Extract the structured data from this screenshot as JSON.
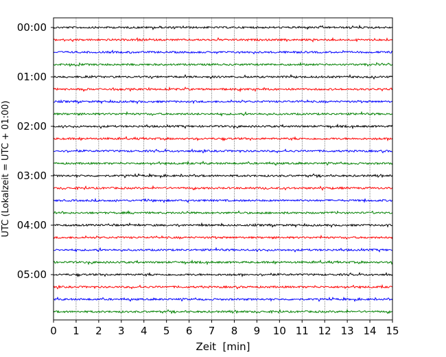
{
  "chart_data": {
    "type": "line",
    "title": "",
    "xlabel": "Zeit  [min]",
    "ylabel": "UTC (Lokalzeit = UTC + 01:00)",
    "xlim": [
      0,
      15
    ],
    "x_ticks": [
      "0",
      "1",
      "2",
      "3",
      "4",
      "5",
      "6",
      "7",
      "8",
      "9",
      "10",
      "11",
      "12",
      "13",
      "14",
      "15"
    ],
    "y_ticks": [
      "00:00",
      "01:00",
      "02:00",
      "03:00",
      "04:00",
      "05:00"
    ],
    "grid": "vertical dotted at each minute",
    "trace_interval_minutes": 15,
    "trace_colors_cycle": [
      "#000000",
      "#ff0000",
      "#0000ff",
      "#008000"
    ],
    "series": [
      {
        "start": "00:00",
        "color": "#000000"
      },
      {
        "start": "00:15",
        "color": "#ff0000"
      },
      {
        "start": "00:30",
        "color": "#0000ff"
      },
      {
        "start": "00:45",
        "color": "#008000"
      },
      {
        "start": "01:00",
        "color": "#000000"
      },
      {
        "start": "01:15",
        "color": "#ff0000"
      },
      {
        "start": "01:30",
        "color": "#0000ff"
      },
      {
        "start": "01:45",
        "color": "#008000"
      },
      {
        "start": "02:00",
        "color": "#000000"
      },
      {
        "start": "02:15",
        "color": "#ff0000"
      },
      {
        "start": "02:30",
        "color": "#0000ff"
      },
      {
        "start": "02:45",
        "color": "#008000"
      },
      {
        "start": "03:00",
        "color": "#000000"
      },
      {
        "start": "03:15",
        "color": "#ff0000"
      },
      {
        "start": "03:30",
        "color": "#0000ff"
      },
      {
        "start": "03:45",
        "color": "#008000"
      },
      {
        "start": "04:00",
        "color": "#000000"
      },
      {
        "start": "04:15",
        "color": "#ff0000"
      },
      {
        "start": "04:30",
        "color": "#0000ff"
      },
      {
        "start": "04:45",
        "color": "#008000"
      },
      {
        "start": "05:00",
        "color": "#000000"
      },
      {
        "start": "05:15",
        "color": "#ff0000"
      },
      {
        "start": "05:30",
        "color": "#0000ff"
      },
      {
        "start": "05:45",
        "color": "#008000"
      }
    ]
  }
}
